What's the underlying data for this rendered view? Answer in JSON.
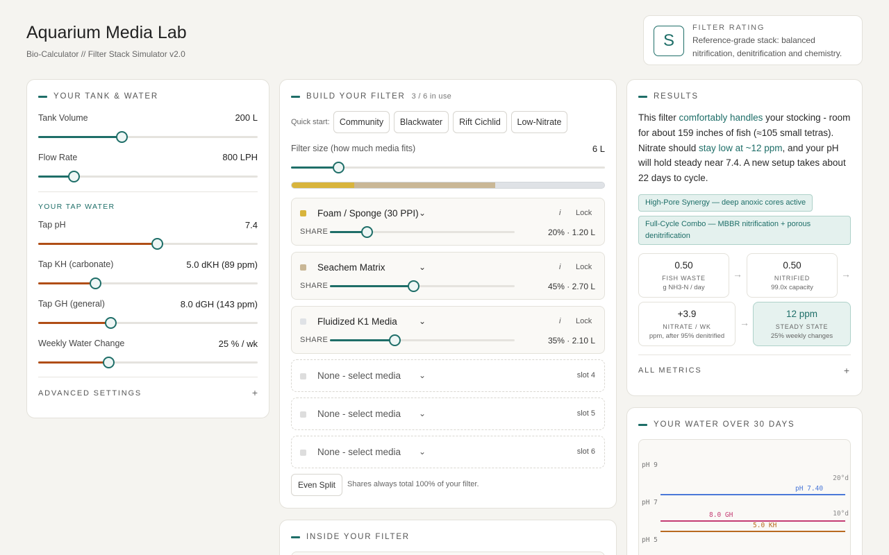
{
  "header": {
    "title": "Aquarium Media Lab",
    "subtitle": "Bio-Calculator // Filter Stack Simulator v2.0"
  },
  "rating": {
    "grade": "S",
    "label": "FILTER RATING",
    "description": "Reference-grade stack: balanced nitrification, denitrification and chemistry."
  },
  "tank": {
    "title": "YOUR TANK & WATER",
    "volume": {
      "label": "Tank Volume",
      "value": "200 L",
      "level": 0.38
    },
    "flow": {
      "label": "Flow Rate",
      "value": "800 LPH",
      "level": 0.16
    },
    "tap_header": "YOUR TAP WATER",
    "ph": {
      "label": "Tap pH",
      "value": "7.4",
      "level": 0.54
    },
    "kh": {
      "label": "Tap KH (carbonate)",
      "value": "5.0 dKH (89 ppm)",
      "level": 0.26
    },
    "gh": {
      "label": "Tap GH (general)",
      "value": "8.0 dGH (143 ppm)",
      "level": 0.33
    },
    "wc": {
      "label": "Weekly Water Change",
      "value": "25 % / wk",
      "level": 0.32
    },
    "advanced": "ADVANCED SETTINGS"
  },
  "build": {
    "title": "BUILD YOUR FILTER",
    "count": "3 / 6 in use",
    "quick_label": "Quick start:",
    "presets": [
      "Community",
      "Blackwater",
      "Rift Cichlid",
      "Low-Nitrate"
    ],
    "size_label": "Filter size (how much media fits)",
    "size_value": "6 L",
    "size_level": 0.15,
    "media": [
      {
        "name": "Foam / Sponge (30 PPI)",
        "share": "20% · 1.20 L",
        "fraction": 0.2,
        "color": "#d8b43c",
        "info": "i",
        "lock": "Lock",
        "share_label": "SHARE"
      },
      {
        "name": "Seachem Matrix",
        "share": "45% · 2.70 L",
        "fraction": 0.45,
        "color": "#c9b796",
        "info": "i",
        "lock": "Lock",
        "share_label": "SHARE"
      },
      {
        "name": "Fluidized K1 Media",
        "share": "35% · 2.10 L",
        "fraction": 0.35,
        "color": "#dfe2e6",
        "info": "i",
        "lock": "Lock",
        "share_label": "SHARE"
      }
    ],
    "empty_slots": [
      {
        "name": "None - select media",
        "slot": "slot 4"
      },
      {
        "name": "None - select media",
        "slot": "slot 5"
      },
      {
        "name": "None - select media",
        "slot": "slot 6"
      }
    ],
    "even_split": "Even Split",
    "note": "Shares always total 100% of your filter."
  },
  "inside": {
    "title": "INSIDE YOUR FILTER"
  },
  "results": {
    "title": "RESULTS",
    "text_1": "This filter ",
    "hl_1": "comfortably handles",
    "text_2": " your stocking - room for about 159 inches of fish (≈105 small tetras). Nitrate should ",
    "hl_2": "stay low at ~12 ppm",
    "text_3": ", and your pH will hold steady near 7.4. A new setup takes about 22 days to cycle.",
    "tags": [
      "High-Pore Synergy — deep anoxic cores active",
      "Full-Cycle Combo — MBBR nitrification + porous denitrification"
    ],
    "metrics": [
      {
        "value": "0.50",
        "title": "FISH WASTE",
        "sub": "g NH3-N / day"
      },
      {
        "value": "0.50",
        "title": "NITRIFIED",
        "sub": "99.0x capacity"
      },
      {
        "value": "+3.9",
        "title": "NITRATE / WK",
        "sub": "ppm, after 95% denitrified"
      },
      {
        "value": "12 ppm",
        "title": "STEADY STATE",
        "sub": "25% weekly changes"
      }
    ],
    "all_metrics": "ALL METRICS"
  },
  "water": {
    "title": "YOUR WATER OVER 30 DAYS"
  },
  "chart_data": {
    "type": "line",
    "y_left_ticks": [
      "pH 9",
      "pH 7",
      "pH 5"
    ],
    "y_right_ticks": [
      "20°d",
      "10°d"
    ],
    "series": [
      {
        "name": "pH 7.40",
        "color": "#4a78d8",
        "values": [
          7.4,
          7.4
        ]
      },
      {
        "name": "8.0 GH",
        "color": "#c43c74",
        "values": [
          8.0,
          8.0
        ]
      },
      {
        "name": "5.0 KH",
        "color": "#b86a20",
        "values": [
          5.0,
          5.0
        ]
      }
    ]
  },
  "icons": {
    "plus": "+",
    "arrow": "→",
    "chevron": "⌄"
  }
}
